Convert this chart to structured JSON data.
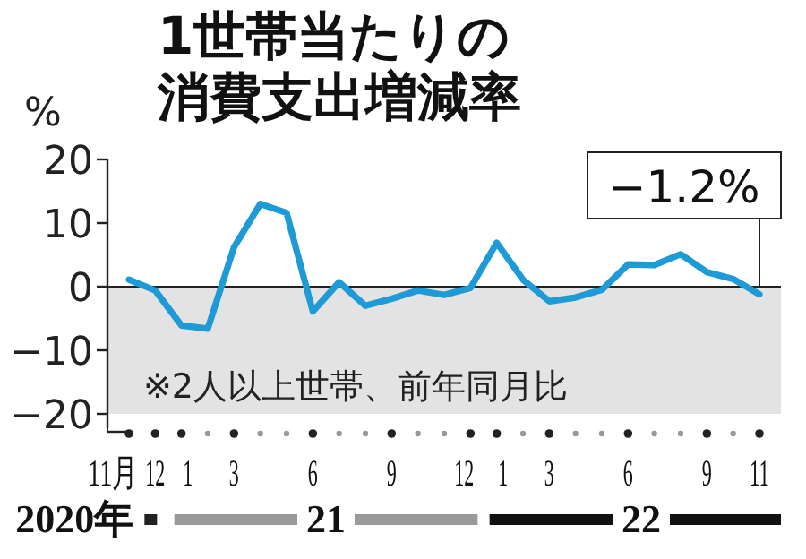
{
  "chart_data": {
    "type": "line",
    "title": "1世帯当たりの消費支出増減率",
    "ylabel": "%",
    "categories": [
      "11月",
      "12",
      "1",
      null,
      "3",
      null,
      null,
      "6",
      null,
      null,
      "9",
      null,
      null,
      "12",
      "1",
      null,
      "3",
      null,
      null,
      "6",
      null,
      null,
      "9",
      null,
      "11"
    ],
    "series": [
      {
        "color": "#1e9ad6",
        "values": [
          1.1,
          -0.6,
          -6.1,
          -6.6,
          6.2,
          13.0,
          11.6,
          -3.9,
          0.7,
          -3.0,
          -1.9,
          -0.6,
          -1.3,
          -0.2,
          6.9,
          1.1,
          -2.3,
          -1.7,
          -0.5,
          3.5,
          3.4,
          5.1,
          2.3,
          1.2,
          -1.2
        ]
      }
    ],
    "ylim": [
      -20,
      20
    ],
    "yticks": [
      {
        "value": -20,
        "label": "−20"
      },
      {
        "value": -10,
        "label": "−10"
      },
      0,
      10,
      20
    ],
    "bands": [
      {
        "axis": "y",
        "from": -20,
        "to": 0,
        "color": "#e3e3e3"
      }
    ],
    "ref_lines": [
      {
        "axis": "y",
        "value": 0,
        "color": "#222222"
      }
    ],
    "annotations": [
      {
        "text": "−1.2%",
        "x": "11",
        "y": -1.2
      },
      "※2人以上世帯、前年同月比",
      "2020年",
      "21",
      "22"
    ],
    "grid": false,
    "marker": "none",
    "line_style": "solid"
  }
}
